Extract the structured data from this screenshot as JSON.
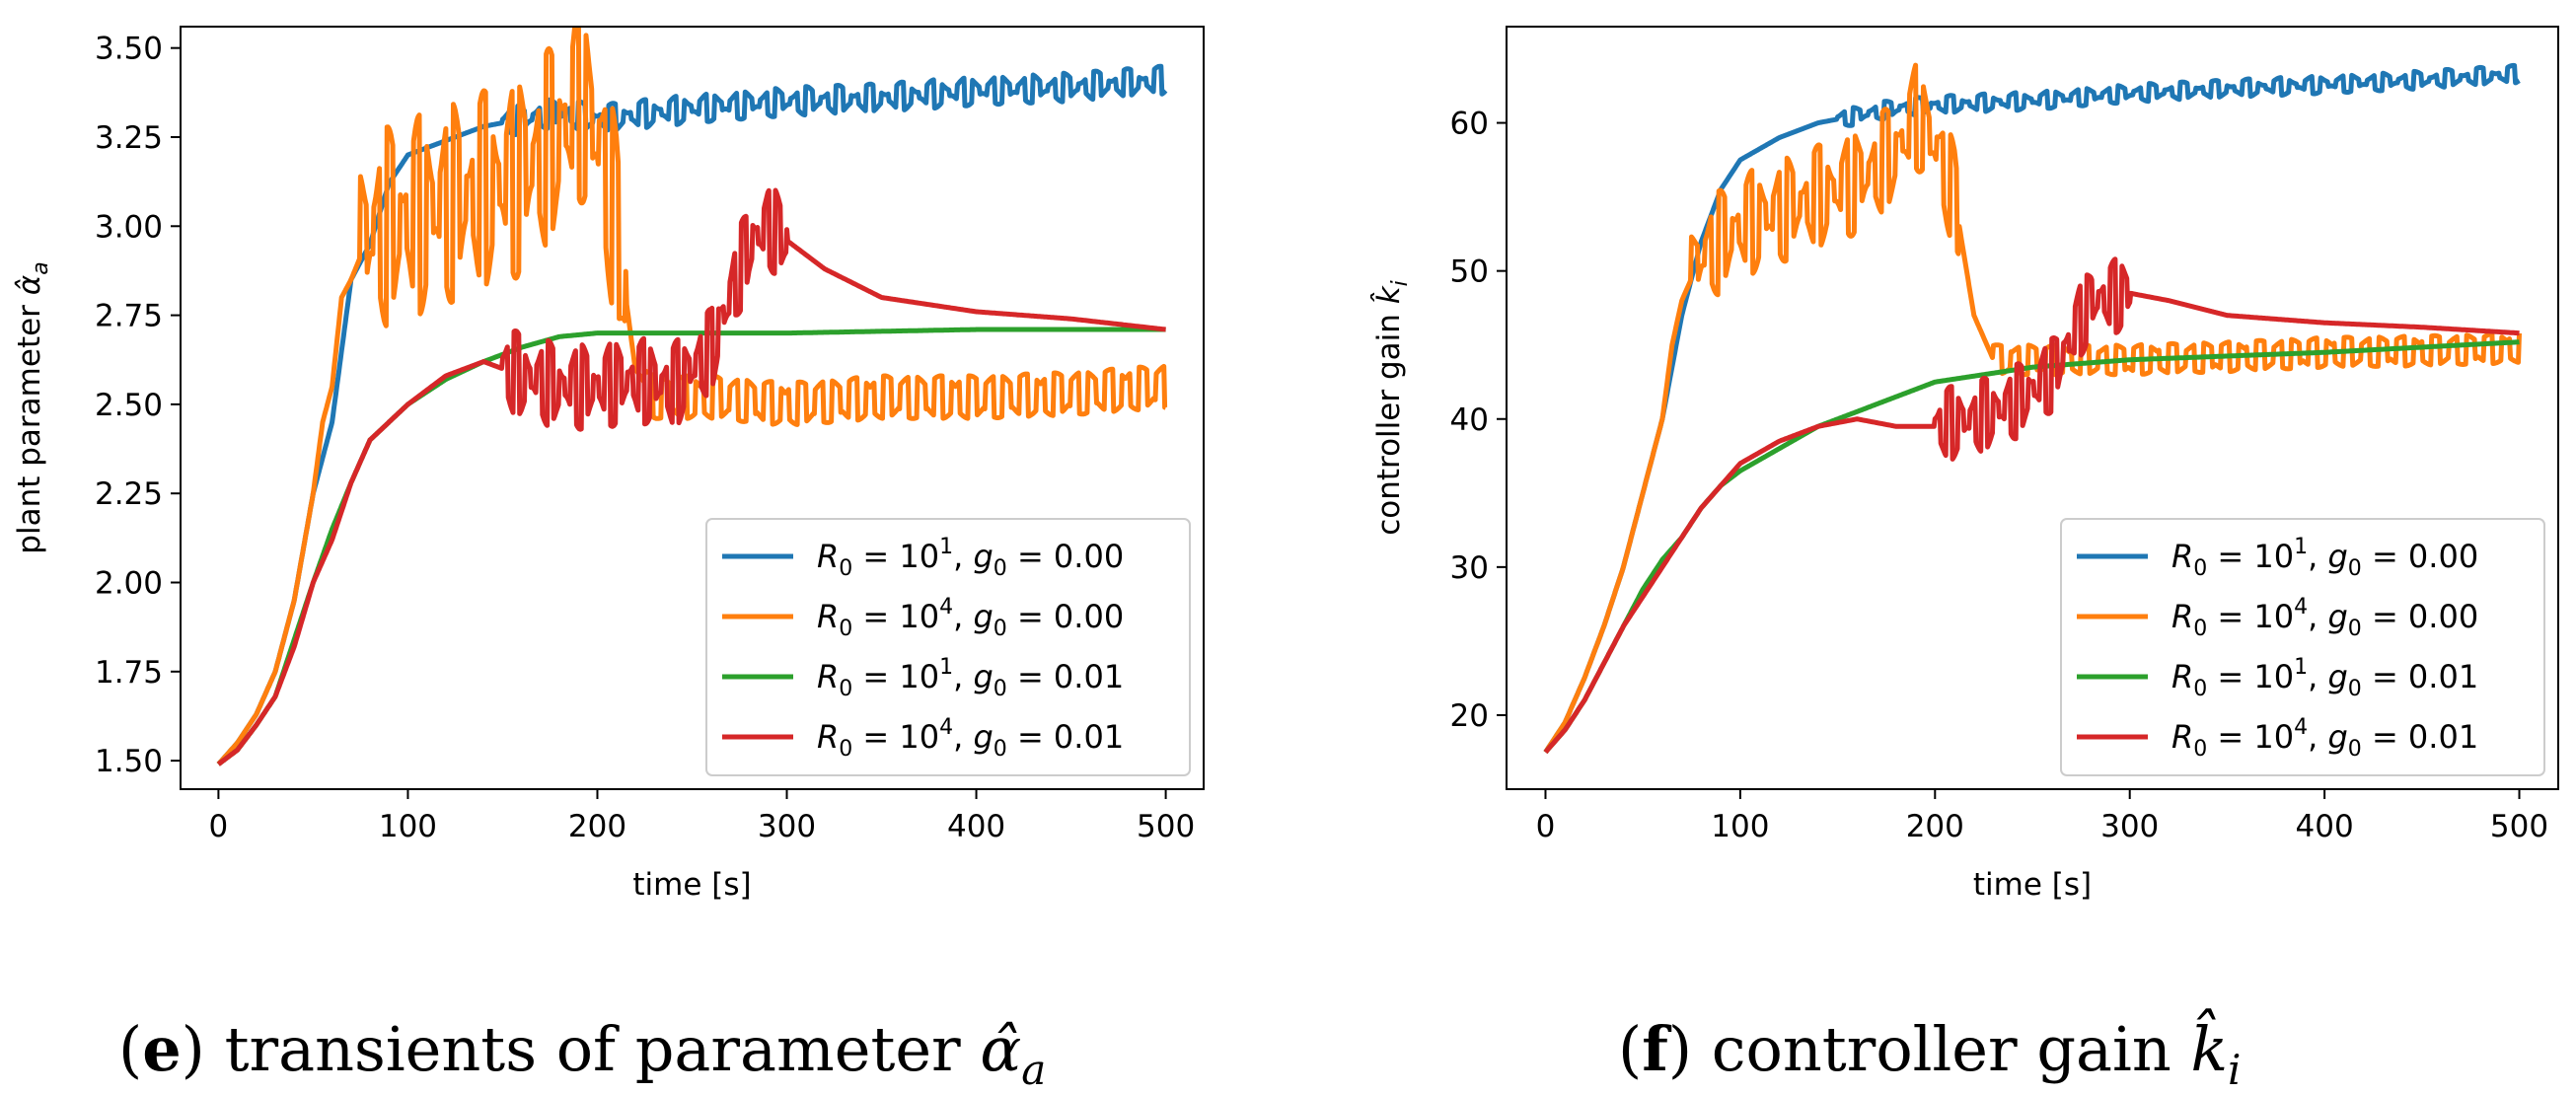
{
  "colors": {
    "blue": "#1f77b4",
    "orange": "#ff7f0e",
    "green": "#2ca02c",
    "red": "#d62728"
  },
  "chart_data": [
    {
      "type": "line",
      "ylabel_text": "plant parameter ",
      "ylabel_symbol": "α̂",
      "ylabel_sub": "a",
      "xlabel": "time [s]",
      "xlim": [
        -20,
        520
      ],
      "ylim": [
        1.42,
        3.56
      ],
      "xticks": [
        0,
        100,
        200,
        300,
        400,
        500
      ],
      "xtick_labels": [
        "0",
        "100",
        "200",
        "300",
        "400",
        "500"
      ],
      "yticks": [
        1.5,
        1.75,
        2.0,
        2.25,
        2.5,
        2.75,
        3.0,
        3.25,
        3.5
      ],
      "ytick_labels": [
        "1.50",
        "1.75",
        "2.00",
        "2.25",
        "2.50",
        "2.75",
        "3.00",
        "3.25",
        "3.50"
      ],
      "legend_position": "lower-right",
      "caption_label": "e",
      "caption_text": " transients of parameter ",
      "caption_symbol": "α̂",
      "caption_sub": "a",
      "series": [
        {
          "color_key": "blue",
          "osc_start": 150,
          "osc_amp": 0.04,
          "osc_period": 8,
          "x": [
            0,
            10,
            20,
            30,
            40,
            50,
            60,
            70,
            80,
            90,
            100,
            120,
            140,
            160,
            180,
            200,
            250,
            300,
            350,
            400,
            450,
            500
          ],
          "y": [
            1.49,
            1.55,
            1.63,
            1.75,
            1.95,
            2.25,
            2.45,
            2.85,
            2.95,
            3.12,
            3.2,
            3.24,
            3.28,
            3.3,
            3.32,
            3.3,
            3.33,
            3.35,
            3.36,
            3.38,
            3.39,
            3.41
          ]
        },
        {
          "color_key": "orange",
          "osc_start": 75,
          "osc_end": 215,
          "osc_amp": 0.28,
          "osc_period": 7,
          "osc_start2": 225,
          "osc_amp2": 0.06,
          "osc_period2": 9,
          "x": [
            0,
            10,
            20,
            30,
            40,
            50,
            55,
            60,
            65,
            70,
            80,
            100,
            120,
            140,
            160,
            180,
            190,
            200,
            210,
            220,
            230,
            260,
            300,
            350,
            400,
            450,
            500
          ],
          "y": [
            1.49,
            1.55,
            1.63,
            1.75,
            1.95,
            2.25,
            2.45,
            2.55,
            2.8,
            2.85,
            2.98,
            3.02,
            3.06,
            3.1,
            3.14,
            3.25,
            3.36,
            3.25,
            3.0,
            2.6,
            2.52,
            2.52,
            2.5,
            2.52,
            2.52,
            2.53,
            2.55
          ]
        },
        {
          "color_key": "green",
          "x": [
            0,
            10,
            20,
            30,
            40,
            50,
            60,
            70,
            80,
            90,
            100,
            120,
            140,
            160,
            180,
            200,
            250,
            300,
            400,
            500
          ],
          "y": [
            1.49,
            1.53,
            1.6,
            1.68,
            1.84,
            2.0,
            2.15,
            2.28,
            2.4,
            2.45,
            2.5,
            2.57,
            2.62,
            2.66,
            2.69,
            2.7,
            2.7,
            2.7,
            2.71,
            2.71
          ]
        },
        {
          "color_key": "red",
          "osc_start": 150,
          "osc_end": 300,
          "osc_amp": 0.12,
          "osc_period": 6,
          "x": [
            0,
            10,
            20,
            30,
            40,
            50,
            60,
            70,
            80,
            90,
            100,
            120,
            140,
            160,
            180,
            200,
            220,
            240,
            260,
            280,
            290,
            300,
            320,
            350,
            400,
            450,
            500
          ],
          "y": [
            1.49,
            1.53,
            1.6,
            1.68,
            1.82,
            2.0,
            2.12,
            2.28,
            2.4,
            2.45,
            2.5,
            2.58,
            2.62,
            2.58,
            2.55,
            2.55,
            2.57,
            2.55,
            2.65,
            2.95,
            3.0,
            2.96,
            2.88,
            2.8,
            2.76,
            2.74,
            2.71
          ]
        }
      ]
    },
    {
      "type": "line",
      "ylabel_text": "controller gain ",
      "ylabel_symbol": "k̂",
      "ylabel_sub": "i",
      "xlabel": "time [s]",
      "xlim": [
        -20,
        520
      ],
      "ylim": [
        15.0,
        66.5
      ],
      "xticks": [
        0,
        100,
        200,
        300,
        400,
        500
      ],
      "xtick_labels": [
        "0",
        "100",
        "200",
        "300",
        "400",
        "500"
      ],
      "yticks": [
        20,
        30,
        40,
        50,
        60
      ],
      "ytick_labels": [
        "20",
        "30",
        "40",
        "50",
        "60"
      ],
      "legend_position": "lower-right",
      "caption_label": "f",
      "caption_text": " controller gain ",
      "caption_symbol": "k̂",
      "caption_sub": "i",
      "series": [
        {
          "color_key": "blue",
          "osc_start": 150,
          "osc_amp": 0.6,
          "osc_period": 8,
          "x": [
            0,
            10,
            20,
            30,
            40,
            50,
            60,
            70,
            80,
            90,
            100,
            120,
            140,
            160,
            180,
            200,
            250,
            300,
            350,
            400,
            450,
            500
          ],
          "y": [
            17.5,
            19.5,
            22.5,
            26.0,
            30.0,
            35.0,
            40.0,
            47.0,
            52.0,
            55.5,
            57.5,
            59.0,
            60.0,
            60.5,
            61.0,
            61.2,
            61.5,
            62.0,
            62.3,
            62.6,
            62.9,
            63.3
          ]
        },
        {
          "color_key": "orange",
          "osc_start": 75,
          "osc_end": 212,
          "osc_amp": 3.5,
          "osc_period": 7,
          "osc_start2": 230,
          "osc_amp2": 1.0,
          "osc_period2": 9,
          "x": [
            0,
            10,
            20,
            30,
            40,
            50,
            60,
            65,
            70,
            80,
            100,
            120,
            140,
            160,
            180,
            190,
            200,
            210,
            220,
            230,
            260,
            300,
            350,
            400,
            450,
            500
          ],
          "y": [
            17.5,
            19.5,
            22.5,
            26.0,
            30.0,
            35.0,
            40.0,
            45.0,
            48.0,
            51.0,
            53.0,
            54.0,
            55.0,
            56.0,
            58.0,
            60.5,
            58.5,
            55.0,
            47.0,
            44.0,
            44.0,
            44.0,
            44.2,
            44.5,
            44.6,
            44.8
          ]
        },
        {
          "color_key": "green",
          "x": [
            0,
            10,
            20,
            30,
            40,
            50,
            60,
            70,
            80,
            90,
            100,
            120,
            140,
            160,
            180,
            200,
            250,
            300,
            400,
            500
          ],
          "y": [
            17.5,
            19.0,
            21.0,
            23.5,
            26.0,
            28.5,
            30.5,
            32.0,
            34.0,
            35.5,
            36.5,
            38.0,
            39.5,
            40.5,
            41.5,
            42.5,
            43.5,
            44.0,
            44.5,
            45.2
          ]
        },
        {
          "color_key": "red",
          "osc_start": 200,
          "osc_end": 300,
          "osc_amp": 2.5,
          "osc_period": 6,
          "x": [
            0,
            10,
            20,
            30,
            40,
            50,
            60,
            70,
            80,
            90,
            100,
            120,
            140,
            160,
            180,
            200,
            220,
            240,
            260,
            280,
            300,
            320,
            350,
            400,
            450,
            500
          ],
          "y": [
            17.5,
            19.0,
            21.0,
            23.5,
            26.0,
            28.0,
            30.0,
            32.0,
            34.0,
            35.5,
            37.0,
            38.5,
            39.5,
            40.0,
            39.5,
            39.5,
            40.0,
            41.0,
            43.0,
            48.0,
            48.5,
            48.0,
            47.0,
            46.5,
            46.2,
            45.8
          ]
        }
      ]
    }
  ],
  "legend": [
    {
      "color_key": "blue",
      "r_sup": "1",
      "g_val": "0.00"
    },
    {
      "color_key": "orange",
      "r_sup": "4",
      "g_val": "0.00"
    },
    {
      "color_key": "green",
      "r_sup": "1",
      "g_val": "0.01"
    },
    {
      "color_key": "red",
      "r_sup": "4",
      "g_val": "0.01"
    }
  ],
  "legend_text": {
    "r": "R",
    "r_sub": "0",
    "eq1": " = 10",
    "g": "g",
    "g_sub": "0",
    "eq2": " = "
  }
}
